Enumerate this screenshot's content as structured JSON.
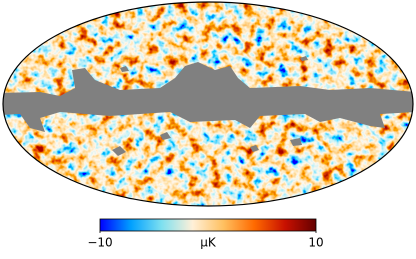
{
  "chart_data": {
    "type": "map",
    "colorbar": {
      "lim": [
        -10,
        10
      ],
      "ticks": [
        {
          "value": -10,
          "label": "−10"
        },
        10
      ],
      "label": "μK",
      "colors": [
        "#0000ff",
        "#00a0ff",
        "#7ee0f0",
        "#fff0d8",
        "#ffc060",
        "#ff6a00",
        "#c81000",
        "#640000"
      ]
    }
  }
}
